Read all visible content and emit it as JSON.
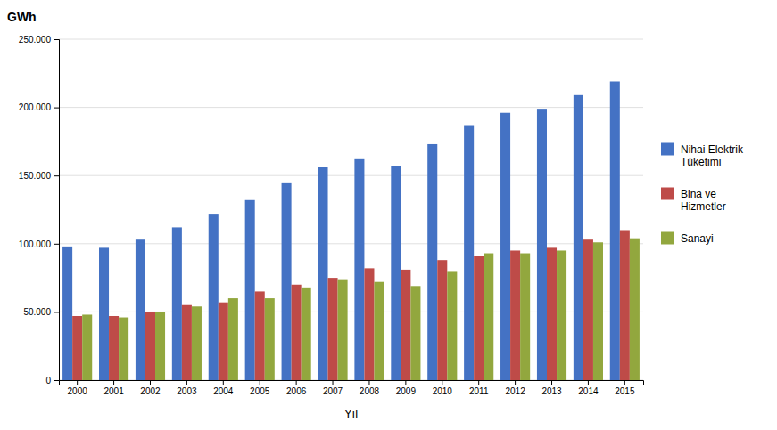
{
  "chart_data": {
    "type": "bar",
    "ylabel": "GWh",
    "xlabel": "Yıl",
    "categories": [
      "2000",
      "2001",
      "2002",
      "2003",
      "2004",
      "2005",
      "2006",
      "2007",
      "2008",
      "2009",
      "2010",
      "2011",
      "2012",
      "2013",
      "2014",
      "2015"
    ],
    "series": [
      {
        "name": "Nihai Elektrik\nTüketimi",
        "color": "#4472C4",
        "values": [
          98000,
          97000,
          103000,
          112000,
          122000,
          132000,
          145000,
          156000,
          162000,
          157000,
          173000,
          187000,
          196000,
          199000,
          209000,
          219000
        ]
      },
      {
        "name": "Bina ve\nHizmetler",
        "color": "#BE4B48",
        "values": [
          47000,
          47000,
          50000,
          55000,
          57000,
          65000,
          70000,
          75000,
          82000,
          81000,
          88000,
          91000,
          95000,
          97000,
          103000,
          110000
        ]
      },
      {
        "name": "Sanayi",
        "color": "#92A73E",
        "values": [
          48000,
          46000,
          50000,
          54000,
          60000,
          60000,
          68000,
          74000,
          72000,
          69000,
          80000,
          93000,
          93000,
          95000,
          101000,
          104000
        ]
      }
    ],
    "ylim": [
      0,
      250000
    ],
    "yticks": [
      0,
      {
        "value": 50000,
        "label": "50.000"
      },
      {
        "value": 100000,
        "label": "100.000"
      },
      {
        "value": 150000,
        "label": "150.000"
      },
      {
        "value": 200000,
        "label": "200.000"
      },
      {
        "value": 250000,
        "label": "250.000"
      }
    ],
    "grid": true,
    "legend": "right"
  }
}
